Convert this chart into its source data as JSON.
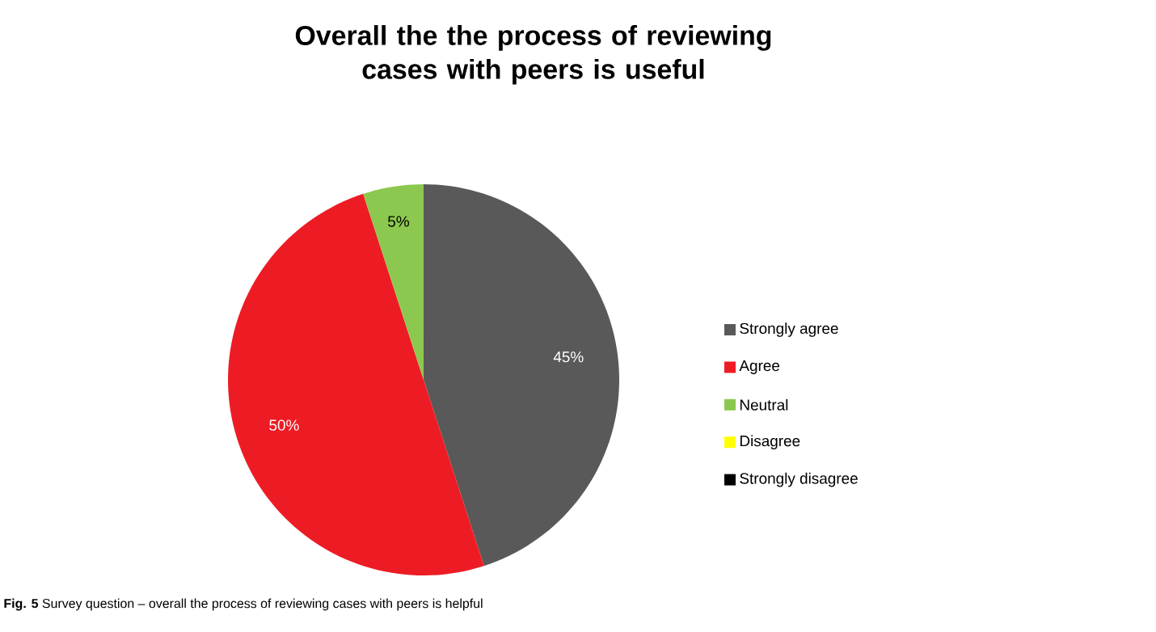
{
  "chart_data": {
    "type": "pie",
    "title": "Overall the the process of reviewing cases with peers is useful",
    "categories": [
      "Strongly agree",
      "Agree",
      "Neutral",
      "Disagree",
      "Strongly disagree"
    ],
    "values": [
      45,
      50,
      5,
      0,
      0
    ],
    "value_labels": [
      "45%",
      "50%",
      "5%",
      null,
      null
    ],
    "colors": [
      "#595959",
      "#ed1c24",
      "#8cc850",
      "#ffff00",
      "#000000"
    ],
    "legend": "right",
    "annotations": [
      "**Fig. 5** Survey question – overall the process of reviewing cases with peers is helpful"
    ]
  }
}
